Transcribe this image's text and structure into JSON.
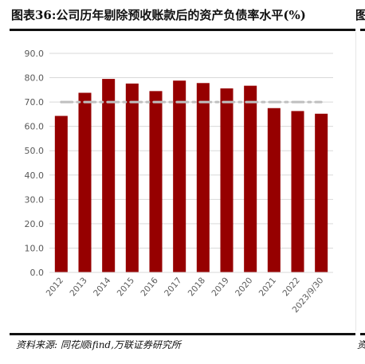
{
  "header": {
    "title": "图表36:公司历年剔除预收账款后的资产负债率水平(%)",
    "next_title_fragment": "图"
  },
  "footer": {
    "source": "资料来源: 同花顺ifind,万联证券研究所",
    "next_source_fragment": "资"
  },
  "chart_data": {
    "type": "bar",
    "categories": [
      "2012",
      "2013",
      "2014",
      "2015",
      "2016",
      "2017",
      "2018",
      "2019",
      "2020",
      "2021",
      "2022",
      "2023/9/30"
    ],
    "series": [
      {
        "values": [
          64.3,
          73.8,
          79.5,
          77.6,
          74.5,
          78.8,
          77.8,
          75.6,
          76.7,
          67.5,
          66.3,
          65.2
        ],
        "color": "#960000"
      },
      {
        "type": "line",
        "values": [
          70,
          70,
          70,
          70,
          70,
          70,
          70,
          70,
          70,
          70,
          70,
          70
        ],
        "color": "#bfbfbf",
        "style": "dash-dot"
      }
    ],
    "yticks": [
      "0.0",
      "10.0",
      "20.0",
      "30.0",
      "40.0",
      "50.0",
      "60.0",
      "70.0",
      "80.0",
      "90.0"
    ],
    "ylim": [
      0,
      90
    ],
    "grid": true,
    "title": "",
    "xlabel": "",
    "ylabel": ""
  }
}
